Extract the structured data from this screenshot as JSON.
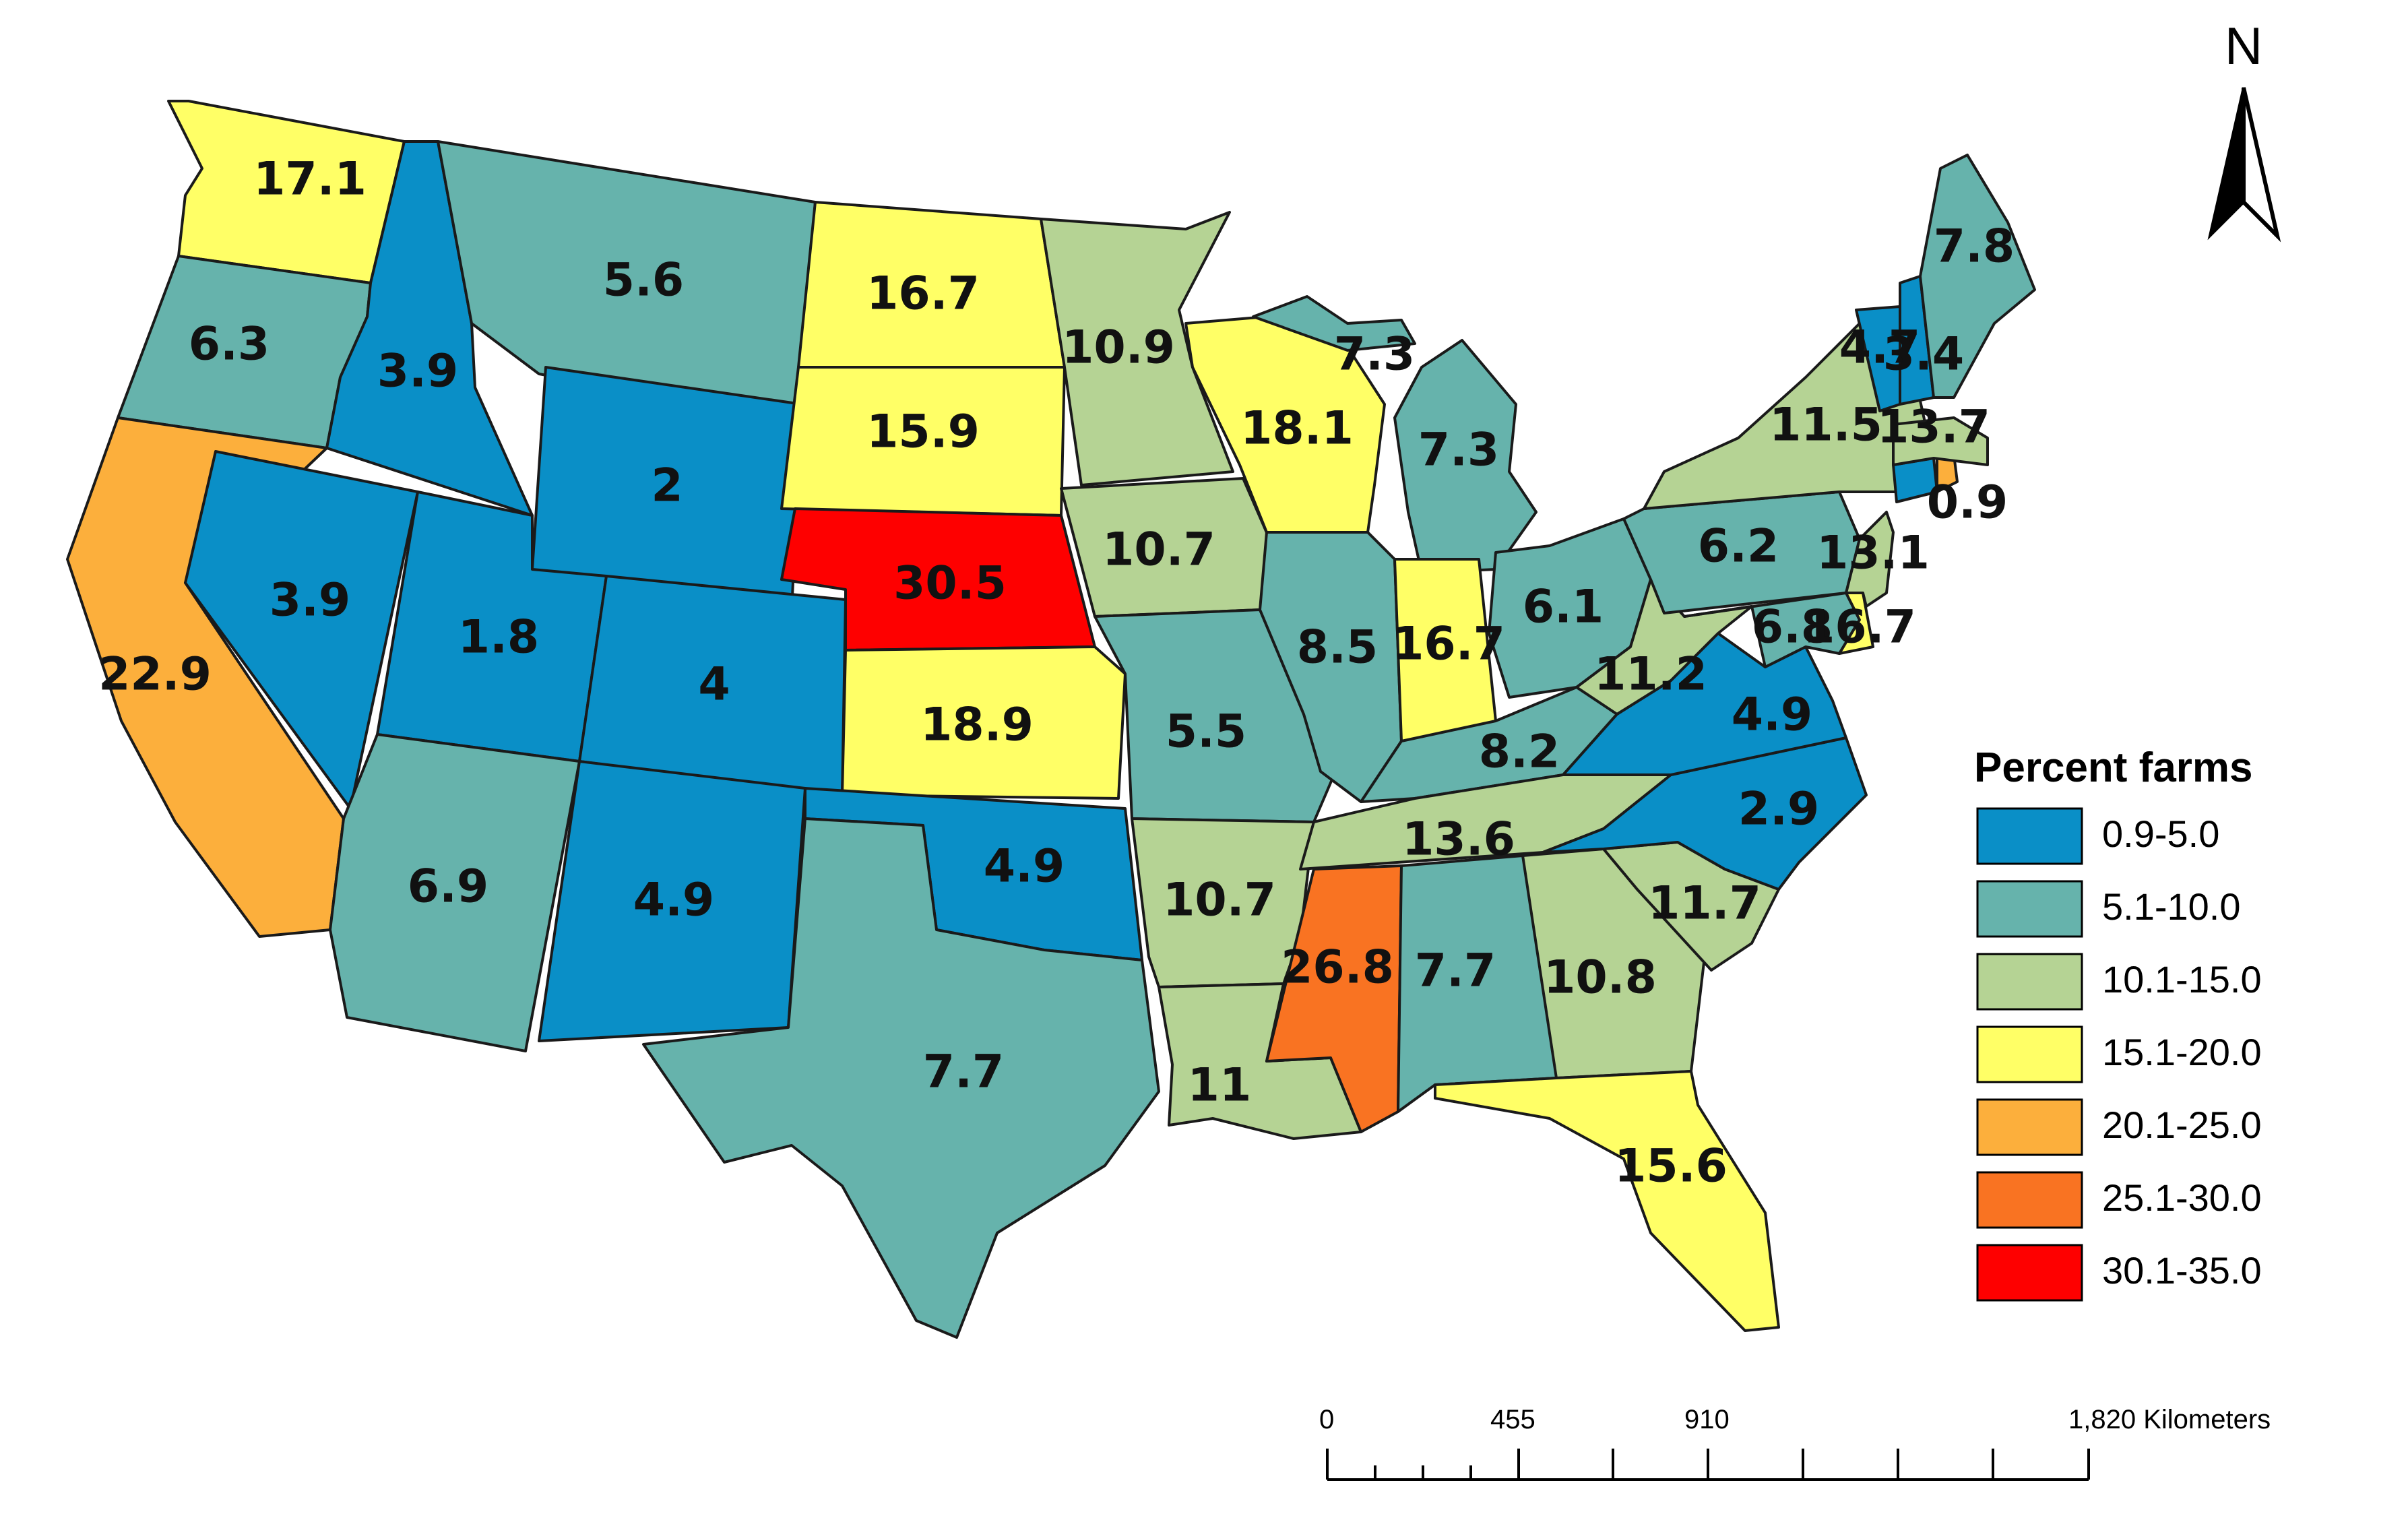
{
  "map": {
    "legend": {
      "title": "Percent farms",
      "classes": [
        {
          "label": "0.9-5.0",
          "color": "#0a8fc7"
        },
        {
          "label": "5.1-10.0",
          "color": "#66b3ac"
        },
        {
          "label": "10.1-15.0",
          "color": "#b5d394"
        },
        {
          "label": "15.1-20.0",
          "color": "#ffff66"
        },
        {
          "label": "20.1-25.0",
          "color": "#fcaf3c"
        },
        {
          "label": "25.1-30.0",
          "color": "#f97322"
        },
        {
          "label": "30.1-35.0",
          "color": "#fe0000"
        }
      ]
    },
    "north_arrow": {
      "label": "N",
      "icon": "north-arrow-icon"
    },
    "scale_bar": {
      "ticks": [
        "0",
        "455",
        "910",
        "1,820 Kilometers"
      ]
    },
    "states": [
      {
        "id": "WA",
        "value": "17.1",
        "color": "#ffff66"
      },
      {
        "id": "OR",
        "value": "6.3",
        "color": "#66b3ac"
      },
      {
        "id": "CA",
        "value": "22.9",
        "color": "#fcaf3c"
      },
      {
        "id": "ID",
        "value": "3.9",
        "color": "#0a8fc7"
      },
      {
        "id": "NV",
        "value": "3.9",
        "color": "#0a8fc7"
      },
      {
        "id": "MT",
        "value": "5.6",
        "color": "#66b3ac"
      },
      {
        "id": "WY",
        "value": "2",
        "color": "#0a8fc7"
      },
      {
        "id": "UT",
        "value": "1.8",
        "color": "#0a8fc7"
      },
      {
        "id": "CO",
        "value": "4",
        "color": "#0a8fc7"
      },
      {
        "id": "AZ",
        "value": "6.9",
        "color": "#66b3ac"
      },
      {
        "id": "NM",
        "value": "4.9",
        "color": "#0a8fc7"
      },
      {
        "id": "ND",
        "value": "16.7",
        "color": "#ffff66"
      },
      {
        "id": "SD",
        "value": "15.9",
        "color": "#ffff66"
      },
      {
        "id": "NE",
        "value": "30.5",
        "color": "#fe0000"
      },
      {
        "id": "KS",
        "value": "18.9",
        "color": "#ffff66"
      },
      {
        "id": "OK",
        "value": "4.9",
        "color": "#0a8fc7"
      },
      {
        "id": "TX",
        "value": "7.7",
        "color": "#66b3ac"
      },
      {
        "id": "MN",
        "value": "10.9",
        "color": "#b5d394"
      },
      {
        "id": "IA",
        "value": "10.7",
        "color": "#b5d394"
      },
      {
        "id": "MO",
        "value": "5.5",
        "color": "#66b3ac"
      },
      {
        "id": "AR",
        "value": "10.7",
        "color": "#b5d394"
      },
      {
        "id": "LA",
        "value": "11",
        "color": "#b5d394"
      },
      {
        "id": "WI",
        "value": "18.1",
        "color": "#ffff66"
      },
      {
        "id": "MI-UP",
        "value": "7.3",
        "color": "#66b3ac"
      },
      {
        "id": "MI",
        "value": "7.3",
        "color": "#66b3ac"
      },
      {
        "id": "IL",
        "value": "8.5",
        "color": "#66b3ac"
      },
      {
        "id": "IN",
        "value": "16.7",
        "color": "#ffff66"
      },
      {
        "id": "OH",
        "value": "6.1",
        "color": "#66b3ac"
      },
      {
        "id": "KY",
        "value": "8.2",
        "color": "#66b3ac"
      },
      {
        "id": "TN",
        "value": "13.6",
        "color": "#b5d394"
      },
      {
        "id": "MS",
        "value": "26.8",
        "color": "#f97322"
      },
      {
        "id": "AL",
        "value": "7.7",
        "color": "#66b3ac"
      },
      {
        "id": "GA",
        "value": "10.8",
        "color": "#b5d394"
      },
      {
        "id": "FL",
        "value": "15.6",
        "color": "#ffff66"
      },
      {
        "id": "SC",
        "value": "11.7",
        "color": "#b5d394"
      },
      {
        "id": "NC",
        "value": "2.9",
        "color": "#0a8fc7"
      },
      {
        "id": "VA",
        "value": "4.9",
        "color": "#0a8fc7"
      },
      {
        "id": "WV",
        "value": "11.2",
        "color": "#b5d394"
      },
      {
        "id": "PA",
        "value": "6.2",
        "color": "#66b3ac"
      },
      {
        "id": "NY",
        "value": "11.5",
        "color": "#b5d394"
      },
      {
        "id": "MD",
        "value": "6.8",
        "color": "#66b3ac"
      },
      {
        "id": "DE",
        "value": "16.7",
        "color": "#ffff66"
      },
      {
        "id": "NJ",
        "value": "13.1",
        "color": "#b5d394"
      },
      {
        "id": "CT",
        "value": "0.9",
        "color": "#0a8fc7"
      },
      {
        "id": "RI",
        "value": "",
        "color": "#fcaf3c"
      },
      {
        "id": "MA",
        "value": "13.7",
        "color": "#b5d394"
      },
      {
        "id": "VT",
        "value": "4.7",
        "color": "#0a8fc7"
      },
      {
        "id": "NH",
        "value": "3.4",
        "color": "#0a8fc7"
      },
      {
        "id": "ME",
        "value": "7.8",
        "color": "#66b3ac"
      }
    ]
  }
}
